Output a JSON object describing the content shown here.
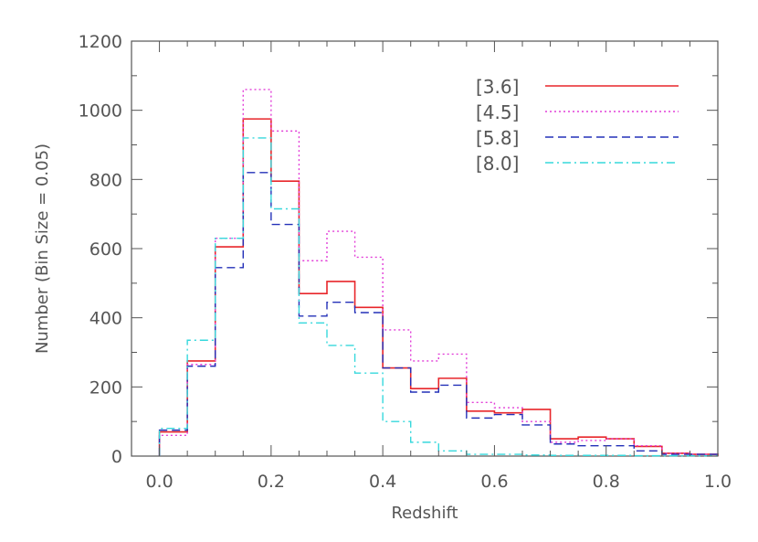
{
  "chart_data": {
    "type": "line",
    "title": "",
    "xlabel": "Redshift",
    "ylabel": "Number (Bin Size = 0.05)",
    "xlim": [
      -0.05,
      1.0
    ],
    "ylim": [
      0,
      1200
    ],
    "x_ticks": [
      0.0,
      0.2,
      0.4,
      0.6,
      0.8,
      1.0
    ],
    "x_tick_labels": [
      "0.0",
      "0.2",
      "0.4",
      "0.6",
      "0.8",
      "1.0"
    ],
    "y_ticks": [
      0,
      200,
      400,
      600,
      800,
      1000,
      1200
    ],
    "y_tick_labels": [
      "0",
      "200",
      "400",
      "600",
      "800",
      "1000",
      "1200"
    ],
    "grid": false,
    "legend_position": "top-right",
    "bin_edges": [
      0.0,
      0.05,
      0.1,
      0.15,
      0.2,
      0.25,
      0.3,
      0.35,
      0.4,
      0.45,
      0.5,
      0.55,
      0.6,
      0.65,
      0.7,
      0.75,
      0.8,
      0.85,
      0.9,
      0.95,
      1.0
    ],
    "series": [
      {
        "name": "[3.6]",
        "color": "#e8262a",
        "dash": "solid",
        "x_start": 0.0,
        "bin_width": 0.05,
        "values": [
          70,
          275,
          605,
          975,
          795,
          470,
          505,
          430,
          255,
          195,
          225,
          130,
          125,
          135,
          50,
          55,
          50,
          28,
          8,
          5
        ]
      },
      {
        "name": "[4.5]",
        "color": "#e23ed8",
        "dash": "dotted",
        "x_start": 0.0,
        "bin_width": 0.05,
        "values": [
          60,
          265,
          630,
          1060,
          940,
          565,
          650,
          575,
          365,
          275,
          295,
          155,
          140,
          100,
          40,
          45,
          50,
          30,
          8,
          5
        ]
      },
      {
        "name": "[5.8]",
        "color": "#2330b8",
        "dash": "dashed",
        "x_start": 0.0,
        "bin_width": 0.05,
        "values": [
          75,
          260,
          545,
          820,
          670,
          405,
          445,
          415,
          255,
          185,
          205,
          110,
          120,
          90,
          35,
          30,
          30,
          15,
          5,
          5
        ]
      },
      {
        "name": "[8.0]",
        "color": "#36d8dc",
        "dash": "dashdot",
        "x_start": 0.0,
        "bin_width": 0.05,
        "values": [
          80,
          335,
          630,
          920,
          715,
          385,
          320,
          240,
          100,
          40,
          15,
          5,
          5,
          3,
          2,
          2,
          2,
          1,
          1,
          1
        ]
      }
    ]
  }
}
